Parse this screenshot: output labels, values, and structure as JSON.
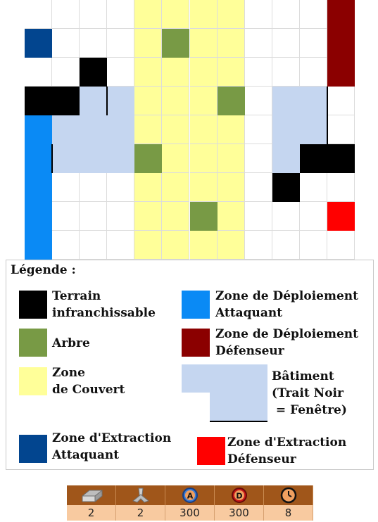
{
  "board": {
    "columns": 12,
    "rows": 9,
    "colors": {
      "w": "#ffffff",
      "y": "#ffff99",
      "g": "#789a45",
      "k": "#000000",
      "b": "#0a8af5",
      "d": "#8b0000",
      "n": "#02458f",
      "l": "#c5d6f0",
      "r": "#ff0000"
    },
    "grid": [
      "wwwwyyyywwwd",
      "nwwwygyywwwd",
      "wwkwyyyywwwd",
      "kkllyyygwllw",
      "blllyyyywllw",
      "blllgyyywlkk",
      "bwwwyyyywkww",
      "bwwwyygywwwr",
      "bwwwyyyywwww"
    ]
  },
  "legend": {
    "title": "Légende :",
    "items": [
      {
        "key": "impassable",
        "color": "#000000",
        "lines": [
          "Terrain",
          "infranchissable"
        ]
      },
      {
        "key": "attacker-deploy",
        "color": "#0a8af5",
        "lines": [
          "Zone de Déploiement",
          "Attaquant"
        ]
      },
      {
        "key": "tree",
        "color": "#789a45",
        "lines": [
          "Arbre"
        ]
      },
      {
        "key": "defender-deploy",
        "color": "#8b0000",
        "lines": [
          "Zone de Déploiement",
          "Défenseur"
        ]
      },
      {
        "key": "cover",
        "color": "#ffff99",
        "lines": [
          "Zone",
          "de Couvert"
        ]
      },
      {
        "key": "building",
        "color": "#c5d6f0",
        "lines": [
          "Bâtiment",
          "(Trait Noir",
          " = Fenêtre)"
        ]
      },
      {
        "key": "attacker-extract",
        "color": "#02458f",
        "lines": [
          "Zone d'Extraction",
          "Attaquant"
        ]
      },
      {
        "key": "defender-extract",
        "color": "#ff0000",
        "lines": [
          "Zone d'Extraction",
          "Défenseur"
        ]
      }
    ]
  },
  "stats": [
    {
      "icon": "wall-block-icon",
      "value": "2"
    },
    {
      "icon": "tank-trap-icon",
      "value": "2"
    },
    {
      "icon": "attacker-a-icon",
      "value": "300"
    },
    {
      "icon": "defender-d-icon",
      "value": "300"
    },
    {
      "icon": "clock-icon",
      "value": "8"
    }
  ]
}
